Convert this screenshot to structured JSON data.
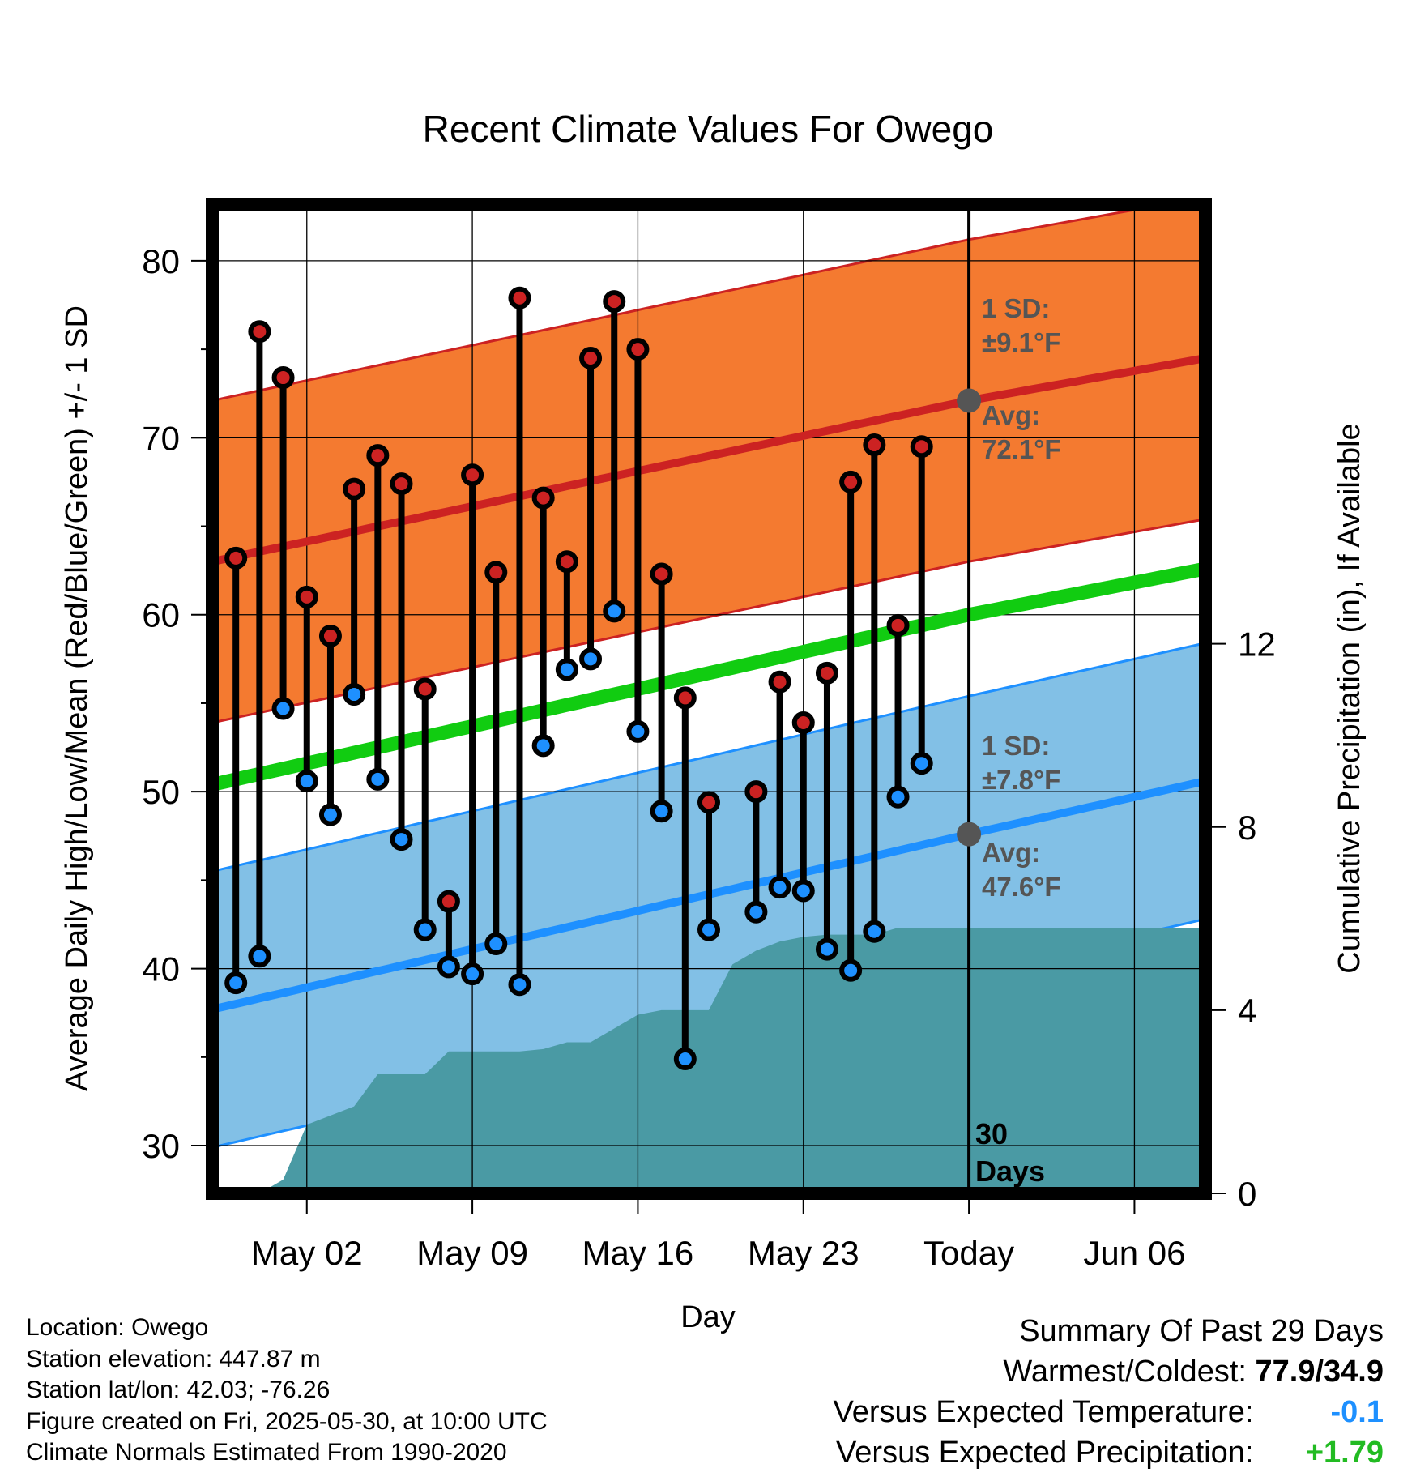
{
  "chart_data": {
    "type": "line",
    "title": "Recent Climate Values For Owego",
    "xlabel": "Day",
    "ylabel": "Average Daily High/Low/Mean (Red/Blue/Green) +/- 1 SD",
    "y2label": "Cumulative Precipitation (in), If Available",
    "ylim": [
      27.3,
      83.2
    ],
    "y2lim": [
      0,
      21.6
    ],
    "y_ticks": [
      "30",
      "40",
      "50",
      "60",
      "70",
      "80"
    ],
    "y2_ticks": [
      "0",
      "4",
      "8",
      "12"
    ],
    "x_start": "2025-04-28",
    "x_end": "2025-06-09",
    "x_tick_labels": [
      {
        "date": "2025-05-02",
        "label": "May 02"
      },
      {
        "date": "2025-05-09",
        "label": "May 09"
      },
      {
        "date": "2025-05-16",
        "label": "May 16"
      },
      {
        "date": "2025-05-23",
        "label": "May 23"
      },
      {
        "date": "2025-05-30",
        "label": "Today"
      },
      {
        "date": "2025-06-06",
        "label": "Jun 06"
      }
    ],
    "today": "2025-05-30",
    "grid": true,
    "colors": {
      "high": "#cc2222",
      "high_band": "#f47a30",
      "low": "#1e90ff",
      "low_band": "#82c0e6",
      "mean": "#11cc11",
      "precip": "#4a9aa4",
      "marker_gray": "#555555"
    },
    "normals": {
      "dates": [
        "2025-04-28",
        "2025-05-30",
        "2025-06-09"
      ],
      "high_avg": [
        63.0,
        72.1,
        74.5
      ],
      "high_sd": 9.1,
      "low_avg": [
        37.7,
        47.6,
        50.6
      ],
      "low_sd": 7.8,
      "mean_avg": [
        50.4,
        60.0,
        62.6
      ]
    },
    "observed": {
      "dates": [
        "2025-04-29",
        "2025-04-30",
        "2025-05-01",
        "2025-05-02",
        "2025-05-03",
        "2025-05-04",
        "2025-05-05",
        "2025-05-06",
        "2025-05-07",
        "2025-05-08",
        "2025-05-09",
        "2025-05-10",
        "2025-05-11",
        "2025-05-12",
        "2025-05-13",
        "2025-05-14",
        "2025-05-15",
        "2025-05-16",
        "2025-05-17",
        "2025-05-18",
        "2025-05-19",
        "2025-05-21",
        "2025-05-22",
        "2025-05-23",
        "2025-05-24",
        "2025-05-25",
        "2025-05-26",
        "2025-05-27",
        "2025-05-28",
        "2025-05-29"
      ],
      "high": [
        63.2,
        76.0,
        73.4,
        61.0,
        58.8,
        67.1,
        69.0,
        67.4,
        55.8,
        43.8,
        67.9,
        62.4,
        77.9,
        66.6,
        63.0,
        74.5,
        77.7,
        75.0,
        62.3,
        55.3,
        49.4,
        50.0,
        56.2,
        53.9,
        56.7,
        67.5,
        69.6,
        59.4,
        69.5,
        null
      ],
      "low": [
        39.2,
        40.7,
        54.7,
        50.6,
        48.7,
        55.5,
        50.7,
        47.3,
        42.2,
        40.1,
        39.7,
        41.4,
        39.1,
        52.6,
        56.9,
        57.5,
        60.2,
        53.4,
        48.9,
        34.9,
        42.2,
        43.2,
        44.6,
        44.4,
        41.1,
        39.9,
        42.1,
        49.7,
        51.6,
        null
      ]
    },
    "precip_cumulative": {
      "dates": [
        "2025-04-30",
        "2025-05-01",
        "2025-05-02",
        "2025-05-03",
        "2025-05-04",
        "2025-05-05",
        "2025-05-06",
        "2025-05-07",
        "2025-05-08",
        "2025-05-09",
        "2025-05-10",
        "2025-05-11",
        "2025-05-12",
        "2025-05-13",
        "2025-05-14",
        "2025-05-15",
        "2025-05-16",
        "2025-05-17",
        "2025-05-18",
        "2025-05-19",
        "2025-05-20",
        "2025-05-21",
        "2025-05-22",
        "2025-05-23",
        "2025-05-24",
        "2025-05-25",
        "2025-05-26",
        "2025-05-27",
        "2025-05-28",
        "2025-05-29",
        "2025-06-09"
      ],
      "values": [
        0.0,
        0.3,
        1.5,
        1.7,
        1.9,
        2.6,
        2.6,
        2.6,
        3.1,
        3.1,
        3.1,
        3.1,
        3.15,
        3.3,
        3.3,
        3.6,
        3.9,
        4.0,
        4.0,
        4.0,
        5.0,
        5.3,
        5.5,
        5.6,
        5.65,
        5.65,
        5.65,
        5.8,
        5.8,
        5.8,
        5.8
      ]
    },
    "annotations": {
      "high_sd_label": "1 SD:",
      "high_sd_value": "±9.1°F",
      "high_avg_label": "Avg:",
      "high_avg_value": "72.1°F",
      "low_sd_label": "1 SD:",
      "low_sd_value": "±7.8°F",
      "low_avg_label": "Avg:",
      "low_avg_value": "47.6°F",
      "days_count": "30",
      "days_label": "Days"
    }
  },
  "footer": {
    "location": "Location: Owego",
    "elevation": "Station elevation: 447.87 m",
    "latlon": "Station lat/lon: 42.03; -76.26",
    "created": "Figure created on Fri, 2025-05-30, at 10:00 UTC",
    "normals": "Climate Normals Estimated From 1990-2020"
  },
  "summary": {
    "title": "Summary Of Past 29 Days",
    "warmest_coldest_label": "Warmest/Coldest:",
    "warmest_coldest_value": "77.9/34.9",
    "temp_label": "Versus Expected Temperature:",
    "temp_value": "-0.1",
    "temp_color": "#1e90ff",
    "precip_label": "Versus Expected Precipitation:",
    "precip_value": "+1.79",
    "precip_color": "#22bb22"
  }
}
